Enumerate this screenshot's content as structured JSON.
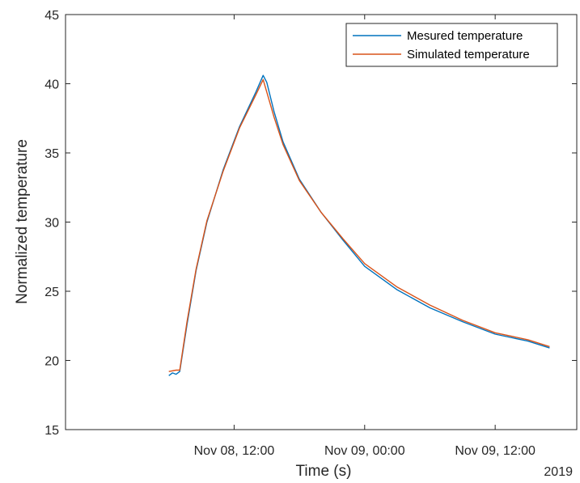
{
  "chart_data": {
    "type": "line",
    "title": "",
    "xlabel": "Time (s)",
    "ylabel": "Normalized temperature",
    "x_secondary_label": "2019",
    "x_axis": {
      "type": "datetime",
      "range": [
        "2019-11-07 20:30",
        "2019-11-09 19:30"
      ],
      "ticks": [
        {
          "value": "2019-11-08 12:00",
          "label": "Nov 08, 12:00"
        },
        {
          "value": "2019-11-09 00:00",
          "label": "Nov 09, 00:00"
        },
        {
          "value": "2019-11-09 12:00",
          "label": "Nov 09, 12:00"
        }
      ]
    },
    "ylim": [
      15,
      45
    ],
    "yticks": [
      15,
      20,
      25,
      30,
      35,
      40,
      45
    ],
    "grid": false,
    "legend_position": "top-right",
    "series": [
      {
        "name": "Mesured temperature",
        "color": "#0072BD",
        "points": [
          [
            "2019-11-08 06:00",
            18.9
          ],
          [
            "2019-11-08 06:20",
            19.1
          ],
          [
            "2019-11-08 06:40",
            19.0
          ],
          [
            "2019-11-08 07:00",
            19.2
          ],
          [
            "2019-11-08 07:40",
            22.6
          ],
          [
            "2019-11-08 08:30",
            26.5
          ],
          [
            "2019-11-08 09:30",
            30.0
          ],
          [
            "2019-11-08 11:00",
            33.8
          ],
          [
            "2019-11-08 12:30",
            36.9
          ],
          [
            "2019-11-08 14:00",
            39.4
          ],
          [
            "2019-11-08 14:40",
            40.6
          ],
          [
            "2019-11-08 15:00",
            40.1
          ],
          [
            "2019-11-08 15:40",
            38.0
          ],
          [
            "2019-11-08 16:30",
            35.8
          ],
          [
            "2019-11-08 18:00",
            33.1
          ],
          [
            "2019-11-08 20:00",
            30.7
          ],
          [
            "2019-11-08 22:00",
            28.7
          ],
          [
            "2019-11-09 00:00",
            26.8
          ],
          [
            "2019-11-09 03:00",
            25.1
          ],
          [
            "2019-11-09 06:00",
            23.8
          ],
          [
            "2019-11-09 09:00",
            22.8
          ],
          [
            "2019-11-09 12:00",
            21.9
          ],
          [
            "2019-11-09 15:00",
            21.4
          ],
          [
            "2019-11-09 17:00",
            20.9
          ]
        ]
      },
      {
        "name": "Simulated temperature",
        "color": "#D95319",
        "points": [
          [
            "2019-11-08 06:00",
            19.2
          ],
          [
            "2019-11-08 06:40",
            19.3
          ],
          [
            "2019-11-08 07:00",
            19.3
          ],
          [
            "2019-11-08 07:40",
            22.8
          ],
          [
            "2019-11-08 08:30",
            26.6
          ],
          [
            "2019-11-08 09:30",
            30.1
          ],
          [
            "2019-11-08 11:00",
            33.7
          ],
          [
            "2019-11-08 12:30",
            36.8
          ],
          [
            "2019-11-08 14:00",
            39.2
          ],
          [
            "2019-11-08 14:40",
            40.3
          ],
          [
            "2019-11-08 15:00",
            39.4
          ],
          [
            "2019-11-08 15:40",
            37.6
          ],
          [
            "2019-11-08 16:30",
            35.6
          ],
          [
            "2019-11-08 18:00",
            33.0
          ],
          [
            "2019-11-08 20:00",
            30.7
          ],
          [
            "2019-11-08 22:00",
            28.8
          ],
          [
            "2019-11-09 00:00",
            27.0
          ],
          [
            "2019-11-09 03:00",
            25.3
          ],
          [
            "2019-11-09 06:00",
            24.0
          ],
          [
            "2019-11-09 09:00",
            22.9
          ],
          [
            "2019-11-09 12:00",
            22.0
          ],
          [
            "2019-11-09 15:00",
            21.5
          ],
          [
            "2019-11-09 17:00",
            21.0
          ]
        ]
      }
    ]
  }
}
